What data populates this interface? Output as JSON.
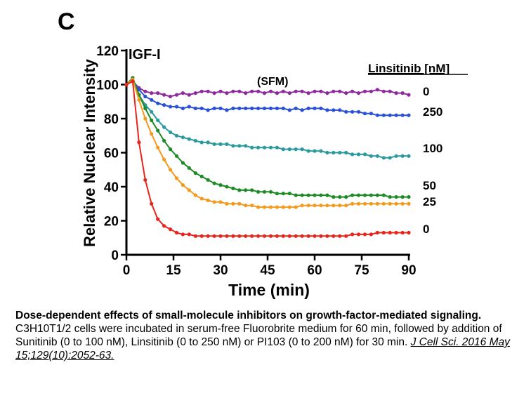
{
  "chart_data": {
    "type": "line",
    "panel_label": "C",
    "title": "IGF-I",
    "annotation": "(SFM)",
    "xlabel": "Time (min)",
    "ylabel": "Relative Nuclear Intensity",
    "xlim": [
      0,
      90
    ],
    "ylim": [
      0,
      120
    ],
    "xticks": [
      0,
      15,
      30,
      45,
      60,
      75,
      90
    ],
    "yticks": [
      0,
      20,
      40,
      60,
      80,
      100,
      120
    ],
    "legend_title": "Linsitinib [nM]",
    "series": [
      {
        "name": "SFM",
        "label": "0",
        "color": "#8e2a9e",
        "x": [
          0,
          2,
          4,
          6,
          8,
          10,
          12,
          14,
          16,
          18,
          20,
          22,
          24,
          26,
          28,
          30,
          32,
          34,
          36,
          38,
          40,
          42,
          44,
          46,
          48,
          50,
          52,
          54,
          56,
          58,
          60,
          62,
          64,
          66,
          68,
          70,
          72,
          74,
          76,
          78,
          80,
          82,
          84,
          86,
          88,
          90
        ],
        "y": [
          100,
          102,
          98,
          96,
          95,
          95,
          94,
          93,
          94,
          95,
          94,
          95,
          96,
          96,
          95,
          96,
          95,
          96,
          96,
          95,
          96,
          96,
          95,
          96,
          95,
          96,
          95,
          96,
          96,
          95,
          96,
          96,
          95,
          96,
          96,
          95,
          96,
          95,
          96,
          96,
          97,
          96,
          96,
          95,
          95,
          94
        ]
      },
      {
        "name": "250 nM",
        "label": "250",
        "color": "#2a4fd8",
        "x": [
          0,
          2,
          4,
          6,
          8,
          10,
          12,
          14,
          16,
          18,
          20,
          22,
          24,
          26,
          28,
          30,
          32,
          34,
          36,
          38,
          40,
          42,
          44,
          46,
          48,
          50,
          52,
          54,
          56,
          58,
          60,
          62,
          64,
          66,
          68,
          70,
          72,
          74,
          76,
          78,
          80,
          82,
          84,
          86,
          88,
          90
        ],
        "y": [
          100,
          102,
          97,
          93,
          91,
          89,
          88,
          87,
          87,
          86,
          87,
          86,
          86,
          85,
          86,
          86,
          85,
          86,
          86,
          86,
          86,
          86,
          86,
          86,
          86,
          86,
          85,
          86,
          85,
          86,
          86,
          86,
          85,
          85,
          85,
          84,
          84,
          84,
          83,
          83,
          82,
          82,
          82,
          82,
          82,
          82
        ]
      },
      {
        "name": "100 nM",
        "label": "100",
        "color": "#2a9a9e",
        "x": [
          0,
          2,
          4,
          6,
          8,
          10,
          12,
          14,
          16,
          18,
          20,
          22,
          24,
          26,
          28,
          30,
          32,
          34,
          36,
          38,
          40,
          42,
          44,
          46,
          48,
          50,
          52,
          54,
          56,
          58,
          60,
          62,
          64,
          66,
          68,
          70,
          72,
          74,
          76,
          78,
          80,
          82,
          84,
          86,
          88,
          90
        ],
        "y": [
          100,
          102,
          94,
          88,
          84,
          79,
          75,
          72,
          70,
          69,
          68,
          67,
          66,
          66,
          65,
          65,
          65,
          64,
          64,
          64,
          63,
          63,
          63,
          63,
          63,
          62,
          62,
          62,
          62,
          61,
          61,
          61,
          60,
          60,
          60,
          60,
          59,
          59,
          59,
          58,
          58,
          57,
          57,
          58,
          58,
          58
        ]
      },
      {
        "name": "50 nM",
        "label": "50",
        "color": "#1d8a25",
        "x": [
          0,
          2,
          4,
          6,
          8,
          10,
          12,
          14,
          16,
          18,
          20,
          22,
          24,
          26,
          28,
          30,
          32,
          34,
          36,
          38,
          40,
          42,
          44,
          46,
          48,
          50,
          52,
          54,
          56,
          58,
          60,
          62,
          64,
          66,
          68,
          70,
          72,
          74,
          76,
          78,
          80,
          82,
          84,
          86,
          88,
          90
        ],
        "y": [
          100,
          104,
          94,
          86,
          79,
          73,
          67,
          62,
          58,
          54,
          51,
          48,
          46,
          44,
          42,
          41,
          40,
          39,
          38,
          38,
          38,
          37,
          37,
          37,
          36,
          36,
          36,
          35,
          35,
          35,
          35,
          35,
          35,
          34,
          34,
          34,
          35,
          35,
          35,
          35,
          35,
          35,
          34,
          34,
          34,
          34
        ]
      },
      {
        "name": "25 nM",
        "label": "25",
        "color": "#f39a1e",
        "x": [
          0,
          2,
          4,
          6,
          8,
          10,
          12,
          14,
          16,
          18,
          20,
          22,
          24,
          26,
          28,
          30,
          32,
          34,
          36,
          38,
          40,
          42,
          44,
          46,
          48,
          50,
          52,
          54,
          56,
          58,
          60,
          62,
          64,
          66,
          68,
          70,
          72,
          74,
          76,
          78,
          80,
          82,
          84,
          86,
          88,
          90
        ],
        "y": [
          100,
          103,
          91,
          80,
          71,
          63,
          56,
          50,
          45,
          41,
          38,
          35,
          33,
          32,
          31,
          31,
          30,
          30,
          30,
          29,
          29,
          28,
          28,
          28,
          28,
          28,
          28,
          28,
          29,
          29,
          29,
          29,
          29,
          29,
          29,
          29,
          30,
          30,
          30,
          30,
          30,
          30,
          30,
          30,
          30,
          30
        ]
      },
      {
        "name": "0 nM",
        "label": "0",
        "color": "#e8251c",
        "x": [
          0,
          2,
          4,
          6,
          8,
          10,
          12,
          14,
          16,
          18,
          20,
          22,
          24,
          26,
          28,
          30,
          32,
          34,
          36,
          38,
          40,
          42,
          44,
          46,
          48,
          50,
          52,
          54,
          56,
          58,
          60,
          62,
          64,
          66,
          68,
          70,
          72,
          74,
          76,
          78,
          80,
          82,
          84,
          86,
          88,
          90
        ],
        "y": [
          100,
          102,
          66,
          44,
          30,
          21,
          17,
          15,
          13,
          12,
          12,
          11,
          11,
          11,
          11,
          11,
          11,
          11,
          11,
          11,
          11,
          11,
          11,
          11,
          11,
          11,
          11,
          11,
          11,
          11,
          11,
          11,
          11,
          11,
          11,
          11,
          12,
          12,
          12,
          12,
          13,
          13,
          13,
          13,
          13,
          13
        ]
      }
    ]
  },
  "caption": {
    "title": "Dose-dependent effects of small-molecule inhibitors on growth-factor-mediated signaling.",
    "body": "C3H10T1/2 cells were incubated in serum-free Fluorobrite medium for 60 min, followed by addition of Sunitinib (0 to 100 nM), Linsitinib (0 to 250 nM) or PI103 (0 to 200 nM) for 30 min. ",
    "citation": "J Cell Sci. 2016 May 15;129(10):2052-63."
  }
}
